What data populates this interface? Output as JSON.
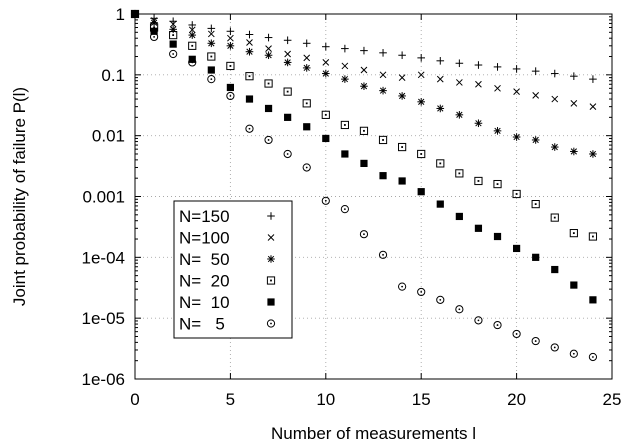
{
  "chart_data": {
    "type": "scatter",
    "title": "",
    "xlabel": "Number of measurements l",
    "ylabel": "Joint probability of failure P(l)",
    "xlim": [
      0,
      25
    ],
    "ylim": [
      1e-06,
      1
    ],
    "yscale": "log",
    "grid": true,
    "legend_position": "lower-left",
    "x_ticks": [
      0,
      5,
      10,
      15,
      20,
      25
    ],
    "x_tick_labels": [
      "0",
      "5",
      "10",
      "15",
      "20",
      "25"
    ],
    "y_ticks": [
      1e-06,
      1e-05,
      0.0001,
      0.001,
      0.01,
      0.1,
      1
    ],
    "y_tick_labels": [
      "1e-06",
      "1e-05",
      "1e-04",
      "0.001",
      "0.01",
      "0.1",
      "1"
    ],
    "series": [
      {
        "name": "N=150",
        "legend_label": "N=150",
        "marker": "plus",
        "x": [
          0,
          1,
          2,
          3,
          4,
          5,
          6,
          7,
          8,
          9,
          10,
          11,
          12,
          13,
          14,
          15,
          16,
          17,
          18,
          19,
          20,
          21,
          22,
          23,
          24
        ],
        "values": [
          1,
          0.85,
          0.76,
          0.66,
          0.58,
          0.52,
          0.46,
          0.41,
          0.37,
          0.33,
          0.29,
          0.27,
          0.25,
          0.23,
          0.21,
          0.19,
          0.17,
          0.155,
          0.145,
          0.135,
          0.125,
          0.115,
          0.105,
          0.095,
          0.085
        ]
      },
      {
        "name": "N=100",
        "legend_label": "N=100",
        "marker": "cross",
        "x": [
          0,
          1,
          2,
          3,
          4,
          5,
          6,
          7,
          8,
          9,
          10,
          11,
          12,
          13,
          14,
          15,
          16,
          17,
          18,
          19,
          20,
          21,
          22,
          23,
          24
        ],
        "values": [
          1,
          0.78,
          0.68,
          0.55,
          0.47,
          0.4,
          0.34,
          0.27,
          0.22,
          0.19,
          0.16,
          0.14,
          0.12,
          0.1,
          0.09,
          0.1,
          0.085,
          0.075,
          0.07,
          0.06,
          0.053,
          0.046,
          0.04,
          0.034,
          0.03
        ]
      },
      {
        "name": "N= 50",
        "legend_label": "N=  50",
        "marker": "star",
        "x": [
          0,
          1,
          2,
          3,
          4,
          5,
          6,
          7,
          8,
          9,
          10,
          11,
          12,
          13,
          14,
          15,
          16,
          17,
          18,
          19,
          20,
          21,
          22,
          23,
          24
        ],
        "values": [
          1,
          0.72,
          0.56,
          0.45,
          0.33,
          0.3,
          0.24,
          0.21,
          0.16,
          0.13,
          0.105,
          0.085,
          0.065,
          0.055,
          0.045,
          0.036,
          0.028,
          0.022,
          0.016,
          0.012,
          0.0095,
          0.0085,
          0.0065,
          0.0055,
          0.005
        ]
      },
      {
        "name": "N= 20",
        "legend_label": "N=  20",
        "marker": "square-dot",
        "x": [
          0,
          1,
          2,
          3,
          4,
          5,
          6,
          7,
          8,
          9,
          10,
          11,
          12,
          13,
          14,
          15,
          16,
          17,
          18,
          19,
          20,
          21,
          22,
          23,
          24
        ],
        "values": [
          1,
          0.6,
          0.45,
          0.3,
          0.2,
          0.14,
          0.095,
          0.072,
          0.053,
          0.034,
          0.022,
          0.015,
          0.012,
          0.0085,
          0.0065,
          0.005,
          0.0035,
          0.0024,
          0.0018,
          0.0016,
          0.0011,
          0.00075,
          0.00045,
          0.00025,
          0.00022
        ]
      },
      {
        "name": "N= 10",
        "legend_label": "N=  10",
        "marker": "filled-square",
        "x": [
          0,
          1,
          2,
          3,
          4,
          5,
          6,
          7,
          8,
          9,
          10,
          11,
          12,
          13,
          14,
          15,
          16,
          17,
          18,
          19,
          20,
          21,
          22,
          23,
          24
        ],
        "values": [
          1,
          0.52,
          0.32,
          0.18,
          0.12,
          0.062,
          0.04,
          0.028,
          0.02,
          0.014,
          0.009,
          0.005,
          0.0035,
          0.0022,
          0.0018,
          0.0012,
          0.00075,
          0.00047,
          0.0003,
          0.00022,
          0.00014,
          0.0001,
          6.3e-05,
          3.5e-05,
          2e-05
        ]
      },
      {
        "name": "N= 5",
        "legend_label": "N=   5",
        "marker": "circle-dot",
        "x": [
          0,
          1,
          2,
          3,
          4,
          5,
          6,
          7,
          8,
          9,
          10,
          11,
          12,
          13,
          14,
          15,
          16,
          17,
          18,
          19,
          20,
          21,
          22,
          23,
          24
        ],
        "values": [
          1,
          0.42,
          0.22,
          0.16,
          0.085,
          0.045,
          0.013,
          0.0085,
          0.005,
          0.003,
          0.00085,
          0.00062,
          0.00024,
          0.00011,
          3.3e-05,
          2.7e-05,
          2e-05,
          1.4e-05,
          9.2e-06,
          7.7e-06,
          5.5e-06,
          4.2e-06,
          3.3e-06,
          2.6e-06,
          2.3e-06
        ]
      }
    ]
  }
}
